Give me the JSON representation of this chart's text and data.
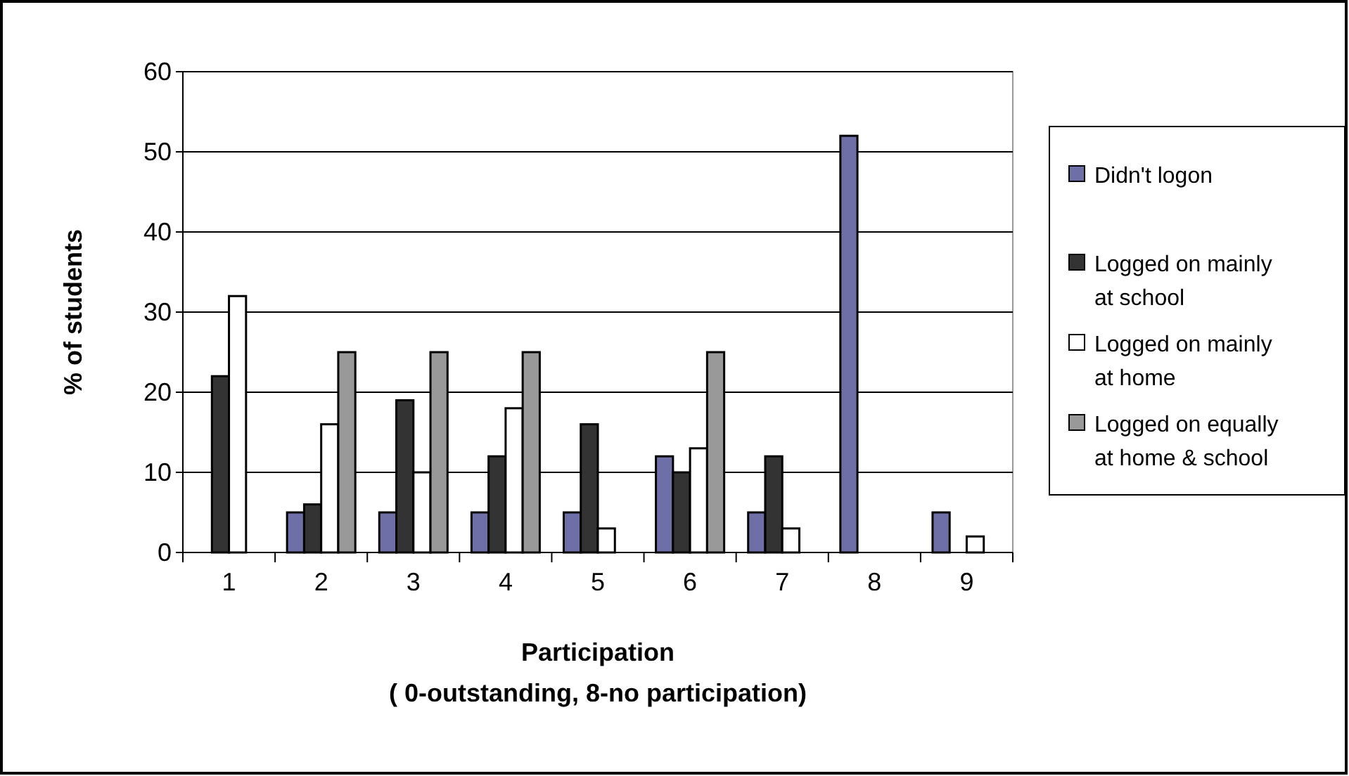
{
  "chart_data": {
    "type": "bar",
    "xlabel": "Participation\n( 0-outstanding, 8-no participation)",
    "ylabel": "% of students",
    "categories": [
      "1",
      "2",
      "3",
      "4",
      "5",
      "6",
      "7",
      "8",
      "9"
    ],
    "series": [
      {
        "name": "Didn't logon",
        "color": "#6f6fa8",
        "values": [
          0,
          5,
          5,
          5,
          5,
          12,
          5,
          52,
          5
        ]
      },
      {
        "name": "Logged on mainly at school",
        "color": "#333333",
        "values": [
          22,
          6,
          19,
          12,
          16,
          10,
          12,
          0,
          0
        ]
      },
      {
        "name": "Logged on mainly at home",
        "color": "#ffffff",
        "values": [
          32,
          16,
          10,
          18,
          3,
          13,
          3,
          0,
          2
        ]
      },
      {
        "name": "Logged on equally at home & school",
        "color": "#999999",
        "values": [
          0,
          25,
          25,
          25,
          0,
          25,
          0,
          0,
          0
        ]
      }
    ],
    "ylim": [
      0,
      60
    ],
    "yticks": [
      0,
      10,
      20,
      30,
      40,
      50,
      60
    ],
    "grid": "y",
    "legend": "right"
  }
}
